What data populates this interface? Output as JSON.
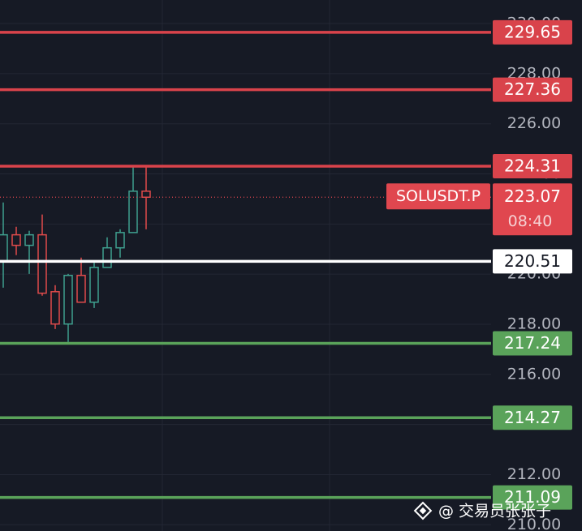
{
  "chart_data": {
    "type": "candlestick",
    "symbol": "SOLUSDT.P",
    "last_price": 223.07,
    "countdown": "08:40",
    "watermark": "@ 交易员张张子",
    "ylim": [
      209.75,
      230.94
    ],
    "yticks": [
      {
        "value": 210,
        "label": "210.00"
      },
      {
        "value": 212,
        "label": "212.00"
      },
      {
        "value": 214,
        "label": "214.00"
      },
      {
        "value": 216,
        "label": "216.00"
      },
      {
        "value": 218,
        "label": "218.00"
      },
      {
        "value": 220,
        "label": "220.00"
      },
      {
        "value": 222,
        "label": "222.00"
      },
      {
        "value": 224,
        "label": "224.00"
      },
      {
        "value": 226,
        "label": "226.00"
      },
      {
        "value": 228,
        "label": "228.00"
      },
      {
        "value": 230,
        "label": "230.00"
      }
    ],
    "grid": true,
    "up_color": "#3fa08f",
    "down_color": "#e04b4b",
    "last_price_color": "#e0474f",
    "candles": [
      {
        "open": 220.53,
        "high": 222.86,
        "low": 219.46,
        "close": 221.57
      },
      {
        "open": 221.57,
        "high": 221.89,
        "low": 220.76,
        "close": 221.15
      },
      {
        "open": 221.15,
        "high": 221.73,
        "low": 220.01,
        "close": 221.57
      },
      {
        "open": 221.57,
        "high": 222.38,
        "low": 219.14,
        "close": 219.24
      },
      {
        "open": 219.3,
        "high": 219.56,
        "low": 217.81,
        "close": 218.01
      },
      {
        "open": 218.01,
        "high": 220.01,
        "low": 217.29,
        "close": 219.95
      },
      {
        "open": 219.95,
        "high": 220.66,
        "low": 218.88,
        "close": 218.88
      },
      {
        "open": 218.88,
        "high": 220.53,
        "low": 218.65,
        "close": 220.27
      },
      {
        "open": 220.27,
        "high": 221.47,
        "low": 220.27,
        "close": 221.05
      },
      {
        "open": 221.05,
        "high": 221.79,
        "low": 220.66,
        "close": 221.66
      },
      {
        "open": 221.66,
        "high": 224.32,
        "low": 221.66,
        "close": 223.31
      },
      {
        "open": 223.31,
        "high": 224.32,
        "low": 221.79,
        "close": 223.07
      }
    ],
    "levels": [
      {
        "value": 229.65,
        "color": "#d9434b"
      },
      {
        "value": 227.36,
        "color": "#d9434b"
      },
      {
        "value": 224.31,
        "color": "#d9434b"
      },
      {
        "value": 220.51,
        "color": "#ffffff"
      },
      {
        "value": 217.24,
        "color": "#5aa35a"
      },
      {
        "value": 214.27,
        "color": "#5aa35a"
      },
      {
        "value": 211.09,
        "color": "#5aa35a"
      }
    ]
  }
}
